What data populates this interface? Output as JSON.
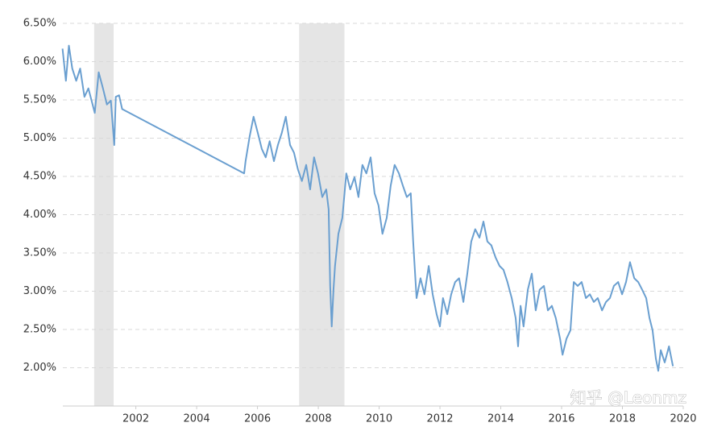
{
  "chart_data": {
    "type": "line",
    "color": "#6a9fd0",
    "grid": true,
    "xlim": [
      1999.6,
      2020
    ],
    "xticks": [
      2002,
      2004,
      2006,
      2008,
      2010,
      2012,
      2014,
      2016,
      2018,
      2020
    ],
    "ylim": [
      1.5,
      6.5
    ],
    "yticks": [
      {
        "value": 2.0,
        "label": "2.00%"
      },
      {
        "value": 2.5,
        "label": "2.50%"
      },
      {
        "value": 3.0,
        "label": "3.00%"
      },
      {
        "value": 3.5,
        "label": "3.50%"
      },
      {
        "value": 4.0,
        "label": "4.00%"
      },
      {
        "value": 4.5,
        "label": "4.50%"
      },
      {
        "value": 5.0,
        "label": "5.00%"
      },
      {
        "value": 5.5,
        "label": "5.50%"
      },
      {
        "value": 6.0,
        "label": "6.00%"
      },
      {
        "value": 6.5,
        "label": "6.50%"
      }
    ],
    "shaded_regions": [
      [
        2000.63,
        2001.27
      ],
      [
        2007.37,
        2008.86
      ]
    ],
    "shade_color": "#e5e5e5",
    "watermark": "知乎 @Leonmz",
    "x": [
      1999.59,
      1999.7,
      1999.8,
      1999.91,
      2000.04,
      2000.17,
      2000.31,
      2000.44,
      2000.65,
      2000.78,
      2000.92,
      2001.05,
      2001.18,
      2001.29,
      2001.34,
      2001.45,
      2001.55,
      2005.56,
      2005.61,
      2005.74,
      2005.87,
      2006.01,
      2006.14,
      2006.27,
      2006.4,
      2006.54,
      2006.67,
      2006.8,
      2006.93,
      2007.07,
      2007.2,
      2007.33,
      2007.46,
      2007.6,
      2007.73,
      2007.86,
      2007.99,
      2008.13,
      2008.26,
      2008.34,
      2008.39,
      2008.44,
      2008.5,
      2008.55,
      2008.66,
      2008.79,
      2008.92,
      2009.05,
      2009.19,
      2009.32,
      2009.45,
      2009.58,
      2009.72,
      2009.85,
      2009.98,
      2010.11,
      2010.25,
      2010.38,
      2010.51,
      2010.65,
      2010.78,
      2010.91,
      2011.04,
      2011.12,
      2011.23,
      2011.36,
      2011.49,
      2011.63,
      2011.76,
      2011.89,
      2012.0,
      2012.1,
      2012.24,
      2012.37,
      2012.5,
      2012.63,
      2012.77,
      2012.9,
      2013.03,
      2013.16,
      2013.3,
      2013.43,
      2013.56,
      2013.69,
      2013.83,
      2013.96,
      2014.09,
      2014.22,
      2014.36,
      2014.49,
      2014.57,
      2014.65,
      2014.75,
      2014.89,
      2015.02,
      2015.15,
      2015.28,
      2015.42,
      2015.55,
      2015.68,
      2015.81,
      2015.95,
      2016.03,
      2016.16,
      2016.29,
      2016.4,
      2016.53,
      2016.66,
      2016.8,
      2016.93,
      2017.06,
      2017.19,
      2017.33,
      2017.46,
      2017.59,
      2017.72,
      2017.86,
      2017.99,
      2018.12,
      2018.25,
      2018.39,
      2018.52,
      2018.65,
      2018.78,
      2018.89,
      2018.99,
      2019.1,
      2019.18,
      2019.26,
      2019.39,
      2019.53,
      2019.66
    ],
    "values": [
      6.17,
      5.75,
      6.21,
      5.91,
      5.75,
      5.91,
      5.54,
      5.65,
      5.33,
      5.86,
      5.65,
      5.44,
      5.49,
      4.91,
      5.54,
      5.56,
      5.38,
      4.54,
      4.7,
      5.02,
      5.28,
      5.07,
      4.86,
      4.75,
      4.96,
      4.7,
      4.91,
      5.07,
      5.28,
      4.91,
      4.81,
      4.59,
      4.44,
      4.65,
      4.33,
      4.75,
      4.54,
      4.23,
      4.33,
      4.07,
      3.07,
      2.54,
      3.02,
      3.33,
      3.75,
      3.96,
      4.54,
      4.33,
      4.49,
      4.23,
      4.65,
      4.54,
      4.75,
      4.28,
      4.12,
      3.75,
      3.96,
      4.38,
      4.65,
      4.54,
      4.38,
      4.23,
      4.28,
      3.65,
      2.91,
      3.17,
      2.96,
      3.33,
      2.96,
      2.7,
      2.54,
      2.91,
      2.7,
      2.96,
      3.12,
      3.17,
      2.86,
      3.23,
      3.65,
      3.81,
      3.7,
      3.91,
      3.65,
      3.6,
      3.44,
      3.33,
      3.28,
      3.12,
      2.91,
      2.65,
      2.28,
      2.81,
      2.54,
      3.02,
      3.23,
      2.75,
      3.02,
      3.07,
      2.75,
      2.81,
      2.65,
      2.38,
      2.17,
      2.38,
      2.49,
      3.12,
      3.07,
      3.12,
      2.91,
      2.96,
      2.86,
      2.91,
      2.75,
      2.86,
      2.91,
      3.07,
      3.12,
      2.96,
      3.12,
      3.38,
      3.17,
      3.12,
      3.02,
      2.91,
      2.65,
      2.49,
      2.12,
      1.96,
      2.23,
      2.07,
      2.28,
      2.02
    ]
  }
}
